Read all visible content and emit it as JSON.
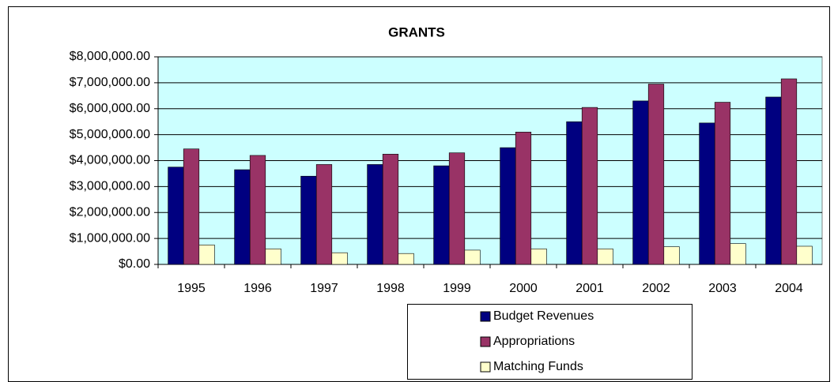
{
  "chart_data": {
    "type": "bar",
    "title": "GRANTS",
    "categories": [
      "1995",
      "1996",
      "1997",
      "1998",
      "1999",
      "2000",
      "2001",
      "2002",
      "2003",
      "2004"
    ],
    "series": [
      {
        "name": "Budget Revenues",
        "color": "#000080",
        "values": [
          3750000,
          3650000,
          3400000,
          3850000,
          3800000,
          4500000,
          5500000,
          6300000,
          5450000,
          6450000
        ]
      },
      {
        "name": "Appropriations",
        "color": "#993366",
        "values": [
          4450000,
          4200000,
          3850000,
          4250000,
          4300000,
          5100000,
          6050000,
          6950000,
          6250000,
          7150000
        ]
      },
      {
        "name": "Matching Funds",
        "color": "#ffffcc",
        "values": [
          750000,
          600000,
          450000,
          420000,
          550000,
          600000,
          600000,
          680000,
          800000,
          700000
        ]
      }
    ],
    "ylim": [
      0,
      8000000
    ],
    "yticks": [
      {
        "value": 0,
        "label": "$0.00"
      },
      {
        "value": 1000000,
        "label": "$1,000,000.00"
      },
      {
        "value": 2000000,
        "label": "$2,000,000.00"
      },
      {
        "value": 3000000,
        "label": "$3,000,000.00"
      },
      {
        "value": 4000000,
        "label": "$4,000,000.00"
      },
      {
        "value": 5000000,
        "label": "$5,000,000.00"
      },
      {
        "value": 6000000,
        "label": "$6,000,000.00"
      },
      {
        "value": 7000000,
        "label": "$7,000,000.00"
      },
      {
        "value": 8000000,
        "label": "$8,000,000.00"
      }
    ],
    "grid": true,
    "legend": "bottom",
    "plot_background": "#ccffff"
  }
}
